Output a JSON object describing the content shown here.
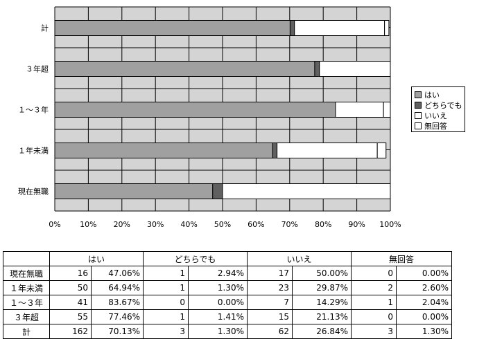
{
  "chart_data": {
    "type": "bar",
    "orientation": "horizontal",
    "stacked": true,
    "percent_stacked": true,
    "categories": [
      "計",
      "３年超",
      "１～３年",
      "１年未満",
      "現在無職"
    ],
    "series": [
      {
        "name": "はい",
        "values": [
          70.13,
          77.46,
          83.67,
          64.94,
          47.06
        ],
        "color": "#a0a0a0"
      },
      {
        "name": "どちらでも",
        "values": [
          1.3,
          1.41,
          0.0,
          1.3,
          2.94
        ],
        "color": "#606060"
      },
      {
        "name": "いいえ",
        "values": [
          26.84,
          21.13,
          14.29,
          29.87,
          50.0
        ],
        "color": "#ffffff"
      },
      {
        "name": "無回答",
        "values": [
          1.3,
          0.0,
          2.04,
          2.6,
          0.0
        ],
        "color": "#ffffff"
      }
    ],
    "xlim": [
      0,
      100
    ],
    "x_ticks": [
      "0%",
      "10%",
      "20%",
      "30%",
      "40%",
      "50%",
      "60%",
      "70%",
      "80%",
      "90%",
      "100%"
    ],
    "grid": true,
    "legend": "right"
  },
  "table": {
    "headers": [
      "はい",
      "どちらでも",
      "いいえ",
      "無回答"
    ],
    "rows": [
      {
        "label": "現在無職",
        "cells": [
          "16",
          "47.06%",
          "1",
          "2.94%",
          "17",
          "50.00%",
          "0",
          "0.00%"
        ]
      },
      {
        "label": "１年未満",
        "cells": [
          "50",
          "64.94%",
          "1",
          "1.30%",
          "23",
          "29.87%",
          "2",
          "2.60%"
        ]
      },
      {
        "label": "１～３年",
        "cells": [
          "41",
          "83.67%",
          "0",
          "0.00%",
          "7",
          "14.29%",
          "1",
          "2.04%"
        ]
      },
      {
        "label": "３年超",
        "cells": [
          "55",
          "77.46%",
          "1",
          "1.41%",
          "15",
          "21.13%",
          "0",
          "0.00%"
        ]
      },
      {
        "label": "計",
        "cells": [
          "162",
          "70.13%",
          "3",
          "1.30%",
          "62",
          "26.84%",
          "3",
          "1.30%"
        ]
      }
    ]
  },
  "colors": {
    "plot_bg": "#d4d4d4",
    "grid": "#000000",
    "none_answer": "#ffffff"
  }
}
